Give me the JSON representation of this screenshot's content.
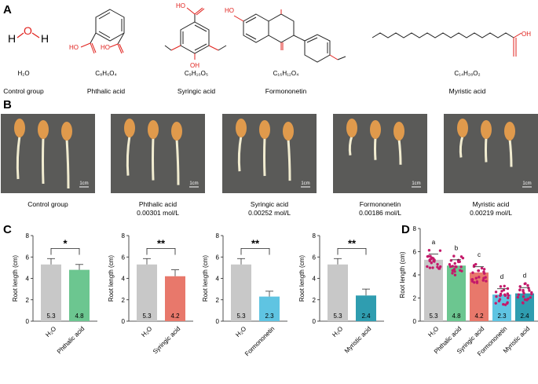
{
  "panels": {
    "a": "A",
    "b": "B",
    "c": "C",
    "d": "D"
  },
  "colors": {
    "control": "#c8c8c8",
    "phthalic": "#6cc690",
    "syringic": "#e8786b",
    "formononetin": "#5fc4e2",
    "myristic": "#2f9db0",
    "dots": "#c4196a",
    "oxygen": "#e0201c",
    "photo_bg": "#5a5a58",
    "seed": "#e09a4c",
    "root": "#f1ecd0"
  },
  "molecules": [
    {
      "name": "Control group",
      "formula": "H₂O"
    },
    {
      "name": "Phthalic acid",
      "formula": "C₈H₆O₄"
    },
    {
      "name": "Syringic acid",
      "formula": "C₉H₁₀O₅"
    },
    {
      "name": "Formononetin",
      "formula": "C₁₆H₁₂O₄"
    },
    {
      "name": "Myristic acid",
      "formula": "C₁₄H₂₈O₂"
    }
  ],
  "atoms": {
    "h": "H",
    "o": "O",
    "oh": "OH",
    "ho": "HO"
  },
  "photos": [
    {
      "name": "Control group",
      "conc": ""
    },
    {
      "name": "Phthalic acid",
      "conc": "0.00301 mol/L"
    },
    {
      "name": "Syringic acid",
      "conc": "0.00252 mol/L"
    },
    {
      "name": "Formononetin",
      "conc": "0.00186 mol/L"
    },
    {
      "name": "Myristic acid",
      "conc": "0.00219 mol/L"
    }
  ],
  "scale_label": "1cm",
  "chart_data": [
    {
      "type": "bar",
      "ylabel": "Root length (cm)",
      "ylim": [
        0,
        8
      ],
      "yticks": [
        0,
        2,
        4,
        6,
        8
      ],
      "categories": [
        "H₂O",
        "Phthalic acid"
      ],
      "values": [
        5.3,
        4.8
      ],
      "errors": [
        0.55,
        0.5
      ],
      "value_labels": [
        "5.3",
        "4.8"
      ],
      "significance": "*"
    },
    {
      "type": "bar",
      "ylabel": "Root length (cm)",
      "ylim": [
        0,
        8
      ],
      "yticks": [
        0,
        2,
        4,
        6,
        8
      ],
      "categories": [
        "H₂O",
        "Syringic acid"
      ],
      "values": [
        5.3,
        4.2
      ],
      "errors": [
        0.55,
        0.6
      ],
      "value_labels": [
        "5.3",
        "4.2"
      ],
      "significance": "**"
    },
    {
      "type": "bar",
      "ylabel": "Root length (cm)",
      "ylim": [
        0,
        8
      ],
      "yticks": [
        0,
        2,
        4,
        6,
        8
      ],
      "categories": [
        "H₂O",
        "Formononetin"
      ],
      "values": [
        5.3,
        2.3
      ],
      "errors": [
        0.55,
        0.5
      ],
      "value_labels": [
        "5.3",
        "2.3"
      ],
      "significance": "**"
    },
    {
      "type": "bar",
      "ylabel": "Root length (cm)",
      "ylim": [
        0,
        8
      ],
      "yticks": [
        0,
        2,
        4,
        6,
        8
      ],
      "categories": [
        "H₂O",
        "Myristic acid"
      ],
      "values": [
        5.3,
        2.4
      ],
      "errors": [
        0.55,
        0.6
      ],
      "value_labels": [
        "5.3",
        "2.4"
      ],
      "significance": "**"
    },
    {
      "type": "bar",
      "ylabel": "Root length (cm)",
      "ylim": [
        0,
        8
      ],
      "yticks": [
        0,
        2,
        4,
        6,
        8
      ],
      "categories": [
        "H₂O",
        "Phthalic acid",
        "Syringic acid",
        "Formononetin",
        "Myristic acid"
      ],
      "values": [
        5.3,
        4.8,
        4.2,
        2.3,
        2.4
      ],
      "value_labels": [
        "5.3",
        "4.8",
        "4.2",
        "2.3",
        "2.4"
      ],
      "letters": [
        "a",
        "b",
        "c",
        "d",
        "d"
      ]
    }
  ]
}
